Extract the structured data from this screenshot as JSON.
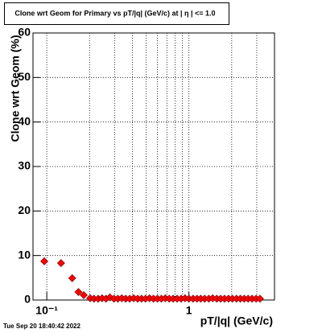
{
  "chart_data": {
    "type": "scatter",
    "title": "Clone wrt Geom for Primary vs pT/|q| (GeV/c) at | η | <= 1.0",
    "x_label": "pT/|q| (GeV/c)",
    "y_label": "Clone wrt Geom (%)",
    "timestamp": "Tue Sep 20 18:40:42 2022",
    "log_x": true,
    "grid": true,
    "color": "#ff0000",
    "xlim": [
      0.08,
      4
    ],
    "ylim": [
      0,
      60
    ],
    "xticks": [
      {
        "value": 0.1,
        "label": "10⁻¹"
      },
      1
    ],
    "xminor": [
      0.2,
      0.3,
      0.4,
      0.5,
      0.6,
      0.7,
      0.8,
      0.9,
      2,
      3
    ],
    "yticks": [
      0,
      10,
      20,
      30,
      40,
      50,
      60
    ],
    "x": [
      0.096,
      0.126,
      0.151,
      0.167,
      0.182,
      0.202,
      0.215,
      0.23,
      0.245,
      0.261,
      0.278,
      0.297,
      0.316,
      0.337,
      0.359,
      0.383,
      0.409,
      0.436,
      0.464,
      0.495,
      0.528,
      0.563,
      0.6,
      0.64,
      0.682,
      0.727,
      0.775,
      0.826,
      0.881,
      0.939,
      1.0,
      1.07,
      1.14,
      1.21,
      1.29,
      1.38,
      1.47,
      1.57,
      1.67,
      1.78,
      1.9,
      2.02,
      2.16,
      2.3,
      2.45,
      2.61,
      2.78,
      2.97,
      3.16
    ],
    "values": [
      8.7,
      8.3,
      4.9,
      1.8,
      1.1,
      0.4,
      0.3,
      0.3,
      0.4,
      0.3,
      0.6,
      0.3,
      0.3,
      0.4,
      0.3,
      0.3,
      0.4,
      0.3,
      0.3,
      0.3,
      0.4,
      0.3,
      0.3,
      0.3,
      0.4,
      0.3,
      0.3,
      0.3,
      0.3,
      0.4,
      0.3,
      0.3,
      0.3,
      0.3,
      0.3,
      0.3,
      0.4,
      0.3,
      0.3,
      0.3,
      0.3,
      0.3,
      0.3,
      0.3,
      0.3,
      0.3,
      0.3,
      0.3,
      0.3
    ]
  }
}
